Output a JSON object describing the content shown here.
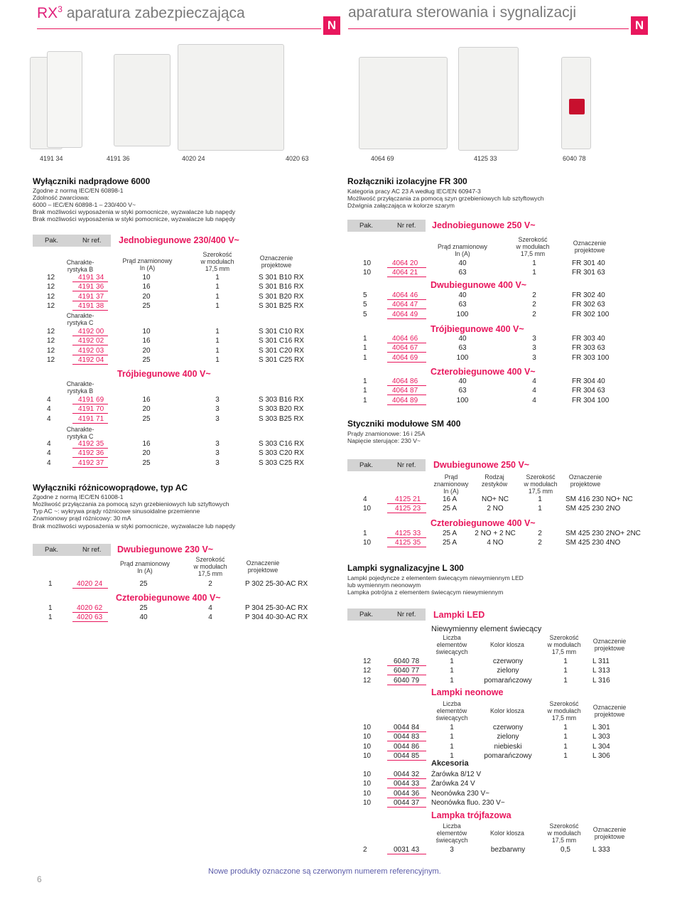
{
  "header": {
    "left_title_rx": "RX",
    "left_title_sup": "3",
    "left_title_rest": "aparatura zabezpieczająca",
    "right_title": "aparatura sterowania i sygnalizacji",
    "new_badge": "N"
  },
  "photo_labels": [
    "4191 34",
    "4191 36",
    "4020 24",
    "4020 63",
    "4064 69",
    "4125 33",
    "6040 78"
  ],
  "col_headers": {
    "pak": "Pak.",
    "nr": "Nr ref."
  },
  "s1": {
    "title": "Wyłączniki nadprądowe 6000",
    "lines": [
      "Zgodne z normą IEC/EN 60898-1",
      "Zdolność zwarciowa:",
      "6000 – IEC/EN 60898-1 – 230/400 V~",
      "Brak możliwości wyposażenia w styki pomocnicze, wyzwalacze lub napędy",
      "Brak możliwości wyposażenia w styki pomocnicze, wyzwalacze lub napędy"
    ],
    "sub1": "Jednobiegunowe 230/400 V~",
    "sub2": "Trójbiegunowe 400 V~",
    "h_char_b": "Charakte-\nrystyka B",
    "h_char_c": "Charakte-\nrystyka C",
    "h_current": "Prąd znamionowy\nIn (A)",
    "h_width": "Szerokość\nw modułach\n17,5 mm",
    "h_design": "Oznaczenie\nprojektowe",
    "rows_1b": [
      [
        "12",
        "4191 34",
        "10",
        "1",
        "S 301 B10 RX"
      ],
      [
        "12",
        "4191 36",
        "16",
        "1",
        "S 301 B16 RX"
      ],
      [
        "12",
        "4191 37",
        "20",
        "1",
        "S 301 B20 RX"
      ],
      [
        "12",
        "4191 38",
        "25",
        "1",
        "S 301 B25 RX"
      ]
    ],
    "rows_1c": [
      [
        "12",
        "4192 00",
        "10",
        "1",
        "S 301 C10 RX"
      ],
      [
        "12",
        "4192 02",
        "16",
        "1",
        "S 301 C16 RX"
      ],
      [
        "12",
        "4192 03",
        "20",
        "1",
        "S 301 C20 RX"
      ],
      [
        "12",
        "4192 04",
        "25",
        "1",
        "S 301 C25 RX"
      ]
    ],
    "rows_3b": [
      [
        "4",
        "4191 69",
        "16",
        "3",
        "S 303 B16 RX"
      ],
      [
        "4",
        "4191 70",
        "20",
        "3",
        "S 303 B20 RX"
      ],
      [
        "4",
        "4191 71",
        "25",
        "3",
        "S 303 B25 RX"
      ]
    ],
    "rows_3c": [
      [
        "4",
        "4192 35",
        "16",
        "3",
        "S 303 C16 RX"
      ],
      [
        "4",
        "4192 36",
        "20",
        "3",
        "S 303 C20 RX"
      ],
      [
        "4",
        "4192 37",
        "25",
        "3",
        "S 303 C25 RX"
      ]
    ]
  },
  "s2": {
    "title": "Wyłączniki różnicowoprądowe, typ AC",
    "lines": [
      "Zgodne z normą IEC/EN 61008-1",
      "Możliwość przyłączania za pomocą szyn grzebieniowych lub sztyftowych",
      "Typ AC ~: wykrywa prądy różnicowe sinusoidalne przemienne",
      "Znamionowy prąd różnicowy: 30 mA",
      "Brak możliwości wyposażenia w styki pomocnicze, wyzwalacze lub napędy"
    ],
    "sub1": "Dwubiegunowe 230 V~",
    "sub2": "Czterobiegunowe 400 V~",
    "h_current": "Prąd znamionowy\nIn (A)",
    "h_width": "Szerokość\nw modułach\n17,5 mm",
    "h_design": "Oznaczenie\nprojektowe",
    "rows_2": [
      [
        "1",
        "4020 24",
        "25",
        "2",
        "P 302 25-30-AC RX"
      ]
    ],
    "rows_4": [
      [
        "1",
        "4020 62",
        "25",
        "4",
        "P 304 25-30-AC RX"
      ],
      [
        "1",
        "4020 63",
        "40",
        "4",
        "P 304 40-30-AC RX"
      ]
    ]
  },
  "s3": {
    "title": "Rozłączniki izolacyjne FR 300",
    "lines": [
      "Kategoria pracy AC 23 A według IEC/EN 60947-3",
      "Możliwość przyłączania za pomocą szyn grzebieniowych lub sztyftowych",
      "Dźwignia załączająca w kolorze szarym"
    ],
    "sub1": "Jednobiegunowe 250 V~",
    "sub2": "Dwubiegunowe 400 V~",
    "sub3": "Trójbiegunowe  400 V~",
    "sub4": "Czterobiegunowe  400 V~",
    "h_current": "Prąd znamionowy\nIn (A)",
    "h_width": "Szerokość\nw modułach\n17,5 mm",
    "h_design": "Oznaczenie\nprojektowe",
    "rows_1": [
      [
        "10",
        "4064 20",
        "40",
        "1",
        "FR 301 40"
      ],
      [
        "10",
        "4064 21",
        "63",
        "1",
        "FR 301 63"
      ]
    ],
    "rows_2": [
      [
        "5",
        "4064 46",
        "40",
        "2",
        "FR 302 40"
      ],
      [
        "5",
        "4064 47",
        "63",
        "2",
        "FR 302 63"
      ],
      [
        "5",
        "4064 49",
        "100",
        "2",
        "FR 302 100"
      ]
    ],
    "rows_3": [
      [
        "1",
        "4064 66",
        "40",
        "3",
        "FR 303 40"
      ],
      [
        "1",
        "4064 67",
        "63",
        "3",
        "FR 303 63"
      ],
      [
        "1",
        "4064 69",
        "100",
        "3",
        "FR 303 100"
      ]
    ],
    "rows_4": [
      [
        "1",
        "4064 86",
        "40",
        "4",
        "FR 304 40"
      ],
      [
        "1",
        "4064 87",
        "63",
        "4",
        "FR 304 63"
      ],
      [
        "1",
        "4064 89",
        "100",
        "4",
        "FR 304 100"
      ]
    ]
  },
  "s4": {
    "title": "Styczniki modułowe SM 400",
    "lines": [
      "Prądy znamionowe: 16 i 25A",
      "Napięcie sterujące: 230 V~"
    ],
    "sub1": "Dwubiegunowe 250 V~",
    "sub2": "Czterobiegunowe 400 V~",
    "h_current": "Prąd\nznamionowy\nIn (A)",
    "h_kind": "Rodzaj\nzestyków",
    "h_width": "Szerokość\nw modułach\n17,5 mm",
    "h_design": "Oznaczenie\nprojektowe",
    "rows_2": [
      [
        "4",
        "4125 21",
        "16 A",
        "NO+ NC",
        "1",
        "SM 416 230 NO+ NC"
      ],
      [
        "10",
        "4125 23",
        "25 A",
        "2 NO",
        "1",
        "SM 425 230 2NO"
      ]
    ],
    "rows_4": [
      [
        "1",
        "4125 33",
        "25 A",
        "2 NO + 2 NC",
        "2",
        "SM 425 230 2NO+ 2NC"
      ],
      [
        "10",
        "4125 35",
        "25 A",
        "4 NO",
        "2",
        "SM 425 230 4NO"
      ]
    ]
  },
  "s5": {
    "title": "Lampki sygnalizacyjne L 300",
    "lines": [
      "Lampki pojedyncze z elementem świecącym niewymiennym LED",
      "lub wymiennym neonowym",
      "Lampka potrójna z elementem świecącym niewymiennym"
    ],
    "sub1": "Lampki LED",
    "led_note": "Niewymienny element świecący",
    "sub2": "Lampki neonowe",
    "sub_acc": "Akcesoria",
    "sub3": "Lampka trójfazowa",
    "h_count": "Liczba\nelementów\nświecących",
    "h_color": "Kolor klosza",
    "h_width": "Szerokość\nw modułach\n17,5 mm",
    "h_design": "Oznaczenie\nprojektowe",
    "rows_led": [
      [
        "12",
        "6040 78",
        "1",
        "czerwony",
        "1",
        "L 311"
      ],
      [
        "12",
        "6040 77",
        "1",
        "zielony",
        "1",
        "L 313"
      ],
      [
        "12",
        "6040 79",
        "1",
        "pomarańczowy",
        "1",
        "L 316"
      ]
    ],
    "rows_neon": [
      [
        "10",
        "0044 84",
        "1",
        "czerwony",
        "1",
        "L 301"
      ],
      [
        "10",
        "0044 83",
        "1",
        "zielony",
        "1",
        "L 303"
      ],
      [
        "10",
        "0044 86",
        "1",
        "niebieski",
        "1",
        "L 304"
      ],
      [
        "10",
        "0044 85",
        "1",
        "pomarańczowy",
        "1",
        "L 306"
      ]
    ],
    "rows_acc": [
      [
        "10",
        "0044 32",
        "Żarówka 8/12 V"
      ],
      [
        "10",
        "0044 33",
        "Żarówka 24 V"
      ],
      [
        "10",
        "0044 36",
        "Neonówka 230 V~"
      ],
      [
        "10",
        "0044 37",
        "Neonówka fluo. 230 V~"
      ]
    ],
    "rows_tri": [
      [
        "2",
        "0031 43",
        "3",
        "bezbarwny",
        "0,5",
        "L 333"
      ]
    ]
  },
  "footer": {
    "note": "Nowe produkty oznaczone są czerwonym numerem referencyjnym.",
    "page": "6"
  },
  "colors": {
    "accent": "#e8175d",
    "header_bar": "#d3d3d3",
    "footer_text": "#5b5ba8"
  }
}
